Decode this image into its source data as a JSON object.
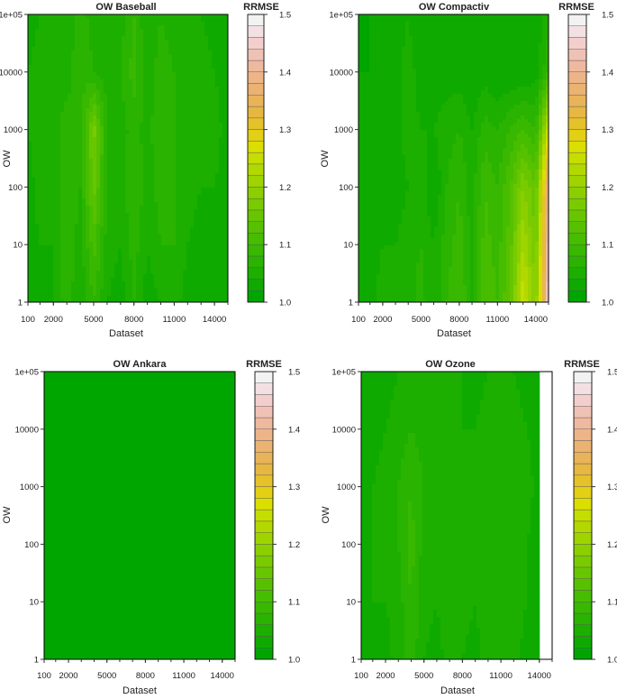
{
  "figure": {
    "colorbar_ticks": [
      "1.5",
      "1.4",
      "1.3",
      "1.2",
      "1.1",
      "1.0"
    ],
    "colorbar_levels": [
      1.0,
      1.025,
      1.05,
      1.075,
      1.1,
      1.125,
      1.15,
      1.175,
      1.2,
      1.225,
      1.25,
      1.275,
      1.3,
      1.325,
      1.35,
      1.375,
      1.4,
      1.425,
      1.45,
      1.475,
      1.5
    ],
    "colorbar_colors": [
      "#00a600",
      "#0eaa00",
      "#1caf00",
      "#2ab300",
      "#38b800",
      "#47bd00",
      "#57c100",
      "#67c600",
      "#79cb00",
      "#8bcf00",
      "#9ed400",
      "#b2d800",
      "#c6dd00",
      "#dadf00",
      "#e3cf14",
      "#e5c22a",
      "#e7b742",
      "#e9b35a",
      "#ebb271",
      "#edb488",
      "#efb99f",
      "#f0c2b6",
      "#f2cfcd",
      "#f3e0e2",
      "#f2f2f2"
    ],
    "colors": {
      "axis": "#333333",
      "frame": "#000000",
      "background": "#ffffff"
    }
  },
  "chart_data": [
    {
      "type": "heatmap",
      "title": "OW Baseball",
      "legend_title": "RRMSE",
      "xlabel": "Dataset",
      "ylabel": "OW",
      "x_ticks": [
        "100",
        "2000",
        "5000",
        "8000",
        "11000",
        "14000"
      ],
      "x_tick_values": [
        100,
        2000,
        5000,
        8000,
        11000,
        14000
      ],
      "y_ticks": [
        "1",
        "10",
        "100",
        "1000",
        "10000",
        "1e+05"
      ],
      "xlim": [
        100,
        15000
      ],
      "ylim": [
        1,
        100000
      ],
      "y_scale": "log",
      "colorbar_range": [
        1.0,
        1.5
      ],
      "x": [
        100,
        1000,
        2000,
        3000,
        4000,
        5000,
        6000,
        7000,
        8000,
        9000,
        10000,
        11000,
        12000,
        13000,
        14000,
        15000
      ],
      "y": [
        1,
        10,
        100,
        1000,
        10000,
        100000
      ],
      "z": [
        [
          1.02,
          1.03,
          1.04,
          1.07,
          1.04,
          1.08,
          1.04,
          1.03,
          1.06,
          1.03,
          1.04,
          1.05,
          1.03,
          1.02,
          1.03,
          1.02
        ],
        [
          1.03,
          1.04,
          1.04,
          1.08,
          1.05,
          1.11,
          1.05,
          1.04,
          1.07,
          1.04,
          1.06,
          1.06,
          1.04,
          1.03,
          1.04,
          1.03
        ],
        [
          1.03,
          1.05,
          1.05,
          1.07,
          1.06,
          1.15,
          1.06,
          1.05,
          1.08,
          1.05,
          1.07,
          1.06,
          1.05,
          1.04,
          1.04,
          1.03
        ],
        [
          1.04,
          1.05,
          1.05,
          1.07,
          1.06,
          1.17,
          1.06,
          1.05,
          1.07,
          1.05,
          1.08,
          1.06,
          1.05,
          1.04,
          1.05,
          1.03
        ],
        [
          1.04,
          1.05,
          1.06,
          1.05,
          1.08,
          1.06,
          1.05,
          1.06,
          1.09,
          1.05,
          1.07,
          1.06,
          1.05,
          1.05,
          1.04,
          1.03
        ],
        [
          1.03,
          1.04,
          1.05,
          1.04,
          1.07,
          1.05,
          1.04,
          1.05,
          1.08,
          1.04,
          1.06,
          1.05,
          1.04,
          1.04,
          1.03,
          1.03
        ]
      ]
    },
    {
      "type": "heatmap",
      "title": "OW Compactiv",
      "legend_title": "RRMSE",
      "xlabel": "Dataset",
      "ylabel": "OW",
      "x_ticks": [
        "100",
        "2000",
        "5000",
        "8000",
        "11000",
        "14000"
      ],
      "x_tick_values": [
        100,
        2000,
        5000,
        8000,
        11000,
        14000
      ],
      "y_ticks": [
        "1",
        "10",
        "100",
        "1000",
        "10000",
        "1e+05"
      ],
      "xlim": [
        100,
        15000
      ],
      "ylim": [
        1,
        100000
      ],
      "y_scale": "log",
      "colorbar_range": [
        1.0,
        1.5
      ],
      "x": [
        100,
        1000,
        2000,
        3000,
        4000,
        5000,
        6000,
        7000,
        8000,
        9000,
        10000,
        11000,
        12000,
        13000,
        14000,
        15000
      ],
      "y": [
        1,
        10,
        100,
        1000,
        10000,
        100000
      ],
      "z": [
        [
          1.02,
          1.03,
          1.05,
          1.04,
          1.05,
          1.07,
          1.04,
          1.08,
          1.1,
          1.06,
          1.12,
          1.1,
          1.14,
          1.26,
          1.18,
          1.45
        ],
        [
          1.02,
          1.03,
          1.04,
          1.04,
          1.05,
          1.06,
          1.04,
          1.07,
          1.09,
          1.05,
          1.11,
          1.09,
          1.13,
          1.22,
          1.16,
          1.42
        ],
        [
          1.02,
          1.02,
          1.03,
          1.03,
          1.04,
          1.05,
          1.02,
          1.06,
          1.08,
          1.05,
          1.1,
          1.08,
          1.12,
          1.18,
          1.14,
          1.38
        ],
        [
          1.02,
          1.02,
          1.03,
          1.03,
          1.05,
          1.04,
          1.04,
          1.05,
          1.06,
          1.04,
          1.07,
          1.06,
          1.08,
          1.1,
          1.08,
          1.25
        ],
        [
          1.02,
          1.02,
          1.02,
          1.03,
          1.05,
          1.03,
          1.03,
          1.03,
          1.03,
          1.02,
          1.03,
          1.02,
          1.02,
          1.02,
          1.03,
          1.08
        ],
        [
          1.01,
          1.02,
          1.02,
          1.03,
          1.04,
          1.02,
          1.02,
          1.02,
          1.02,
          1.02,
          1.02,
          1.02,
          1.02,
          1.02,
          1.02,
          1.05
        ]
      ]
    },
    {
      "type": "heatmap",
      "title": "OW Ankara",
      "legend_title": "RRMSE",
      "xlabel": "Dataset",
      "ylabel": "OW",
      "x_ticks": [
        "100",
        "2000",
        "5000",
        "8000",
        "11000",
        "14000"
      ],
      "x_tick_values": [
        100,
        2000,
        5000,
        8000,
        11000,
        14000
      ],
      "y_ticks": [
        "1",
        "10",
        "100",
        "1000",
        "10000",
        "1e+05"
      ],
      "xlim": [
        100,
        15000
      ],
      "ylim": [
        1,
        100000
      ],
      "y_scale": "log",
      "colorbar_range": [
        1.0,
        1.5
      ],
      "x": [
        100,
        15000
      ],
      "y": [
        1,
        100000
      ],
      "z": [
        [
          1.01,
          1.01
        ],
        [
          1.01,
          1.01
        ]
      ]
    },
    {
      "type": "heatmap",
      "title": "OW Ozone",
      "legend_title": "RRMSE",
      "xlabel": "Dataset",
      "ylabel": "OW",
      "x_ticks": [
        "100",
        "2000",
        "5000",
        "8000",
        "11000",
        "14000"
      ],
      "x_tick_values": [
        100,
        2000,
        5000,
        8000,
        11000,
        14000
      ],
      "y_ticks": [
        "1",
        "10",
        "100",
        "1000",
        "10000",
        "1e+05"
      ],
      "xlim": [
        100,
        15000
      ],
      "ylim": [
        1,
        100000
      ],
      "y_scale": "log",
      "colorbar_range": [
        1.0,
        1.5
      ],
      "x": [
        100,
        1000,
        2000,
        3000,
        4000,
        5000,
        6000,
        7000,
        8000,
        9000,
        10000,
        11000,
        12000,
        13000,
        14000
      ],
      "y": [
        1,
        10,
        100,
        1000,
        10000,
        100000
      ],
      "z": [
        [
          1.02,
          1.04,
          1.03,
          1.05,
          1.07,
          1.04,
          1.03,
          1.05,
          1.04,
          1.03,
          1.05,
          1.04,
          1.05,
          1.03,
          1.02
        ],
        [
          1.02,
          1.04,
          1.04,
          1.05,
          1.08,
          1.05,
          1.04,
          1.06,
          1.05,
          1.04,
          1.06,
          1.05,
          1.05,
          1.04,
          1.03
        ],
        [
          1.03,
          1.04,
          1.04,
          1.06,
          1.09,
          1.05,
          1.05,
          1.06,
          1.05,
          1.04,
          1.06,
          1.05,
          1.06,
          1.04,
          1.03
        ],
        [
          1.03,
          1.04,
          1.05,
          1.06,
          1.08,
          1.06,
          1.05,
          1.06,
          1.05,
          1.04,
          1.06,
          1.05,
          1.06,
          1.05,
          1.03
        ],
        [
          1.02,
          1.03,
          1.04,
          1.05,
          1.06,
          1.05,
          1.04,
          1.05,
          1.04,
          1.04,
          1.05,
          1.04,
          1.05,
          1.04,
          1.03
        ],
        [
          1.02,
          1.03,
          1.03,
          1.04,
          1.05,
          1.04,
          1.04,
          1.04,
          1.04,
          1.03,
          1.04,
          1.04,
          1.04,
          1.03,
          1.02
        ]
      ]
    }
  ]
}
